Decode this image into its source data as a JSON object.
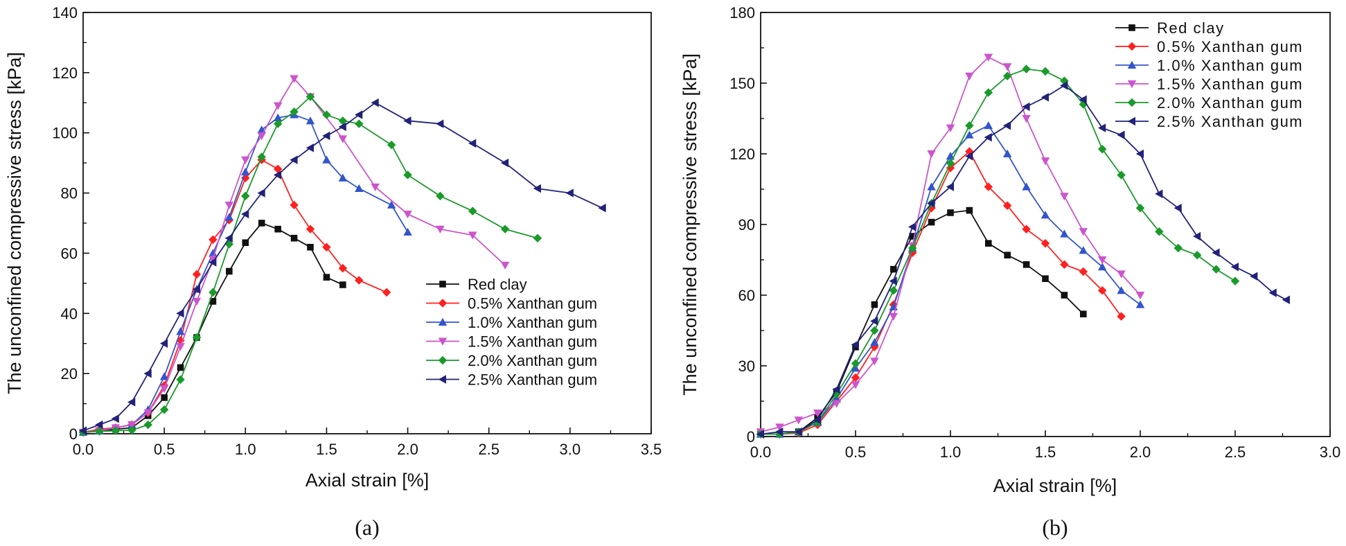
{
  "styles": {
    "series_colors": [
      "#111111",
      "#ff2020",
      "#3355cc",
      "#cc55cc",
      "#1a9a2a",
      "#22227a"
    ],
    "series_markers": [
      "square",
      "diamond",
      "triangle-up",
      "triangle-down",
      "diamond",
      "triangle-left"
    ]
  },
  "chart_data": [
    {
      "id": "a",
      "type": "line",
      "caption": "(a)",
      "xlabel": "Axial strain [%]",
      "ylabel": "The unconfined compressive stress [kPa]",
      "xlim": [
        0,
        3.5
      ],
      "ylim": [
        0,
        140
      ],
      "xticks": [
        "0.0",
        "0.5",
        "1.0",
        "1.5",
        "2.0",
        "2.5",
        "3.0",
        "3.5"
      ],
      "yticks": [
        "0",
        "20",
        "40",
        "60",
        "80",
        "100",
        "120",
        "140"
      ],
      "legend_position": "bottom-right",
      "series": [
        {
          "name": "Red clay",
          "x": [
            0,
            0.1,
            0.2,
            0.3,
            0.4,
            0.5,
            0.6,
            0.7,
            0.8,
            0.9,
            1.0,
            1.1,
            1.2,
            1.3,
            1.4,
            1.5,
            1.6
          ],
          "y": [
            0.5,
            1,
            1.5,
            2,
            6,
            12,
            22,
            32,
            44,
            54,
            63.5,
            70,
            68,
            65,
            62,
            52,
            49.5
          ]
        },
        {
          "name": "0.5% Xanthan gum",
          "x": [
            0,
            0.1,
            0.2,
            0.3,
            0.4,
            0.5,
            0.6,
            0.7,
            0.8,
            0.9,
            1.0,
            1.1,
            1.2,
            1.3,
            1.4,
            1.5,
            1.6,
            1.7,
            1.87
          ],
          "y": [
            0.5,
            1.5,
            2,
            3,
            7,
            16,
            31,
            53,
            64.5,
            71,
            85,
            91,
            88,
            76,
            68,
            62,
            55,
            51,
            47
          ]
        },
        {
          "name": "1.0% Xanthan gum",
          "x": [
            0,
            0.1,
            0.2,
            0.3,
            0.4,
            0.5,
            0.6,
            0.7,
            0.8,
            0.9,
            1.0,
            1.1,
            1.2,
            1.3,
            1.4,
            1.5,
            1.6,
            1.7,
            1.9,
            2.0
          ],
          "y": [
            0.5,
            1,
            2,
            3,
            8,
            19,
            34,
            48,
            60,
            72,
            87,
            101,
            105,
            106,
            104,
            91,
            85,
            81.5,
            76,
            67
          ]
        },
        {
          "name": "1.5% Xanthan gum",
          "x": [
            0,
            0.1,
            0.2,
            0.3,
            0.4,
            0.5,
            0.6,
            0.7,
            0.8,
            0.9,
            1.0,
            1.1,
            1.2,
            1.3,
            1.4,
            1.6,
            1.8,
            2.0,
            2.2,
            2.4,
            2.6
          ],
          "y": [
            0.5,
            1,
            2,
            3,
            7,
            15,
            29,
            44,
            58,
            76,
            91,
            99,
            109,
            118,
            112,
            98,
            82,
            73,
            68,
            66,
            56
          ]
        },
        {
          "name": "2.0% Xanthan gum",
          "x": [
            0,
            0.1,
            0.2,
            0.3,
            0.4,
            0.5,
            0.6,
            0.7,
            0.8,
            0.9,
            1.0,
            1.1,
            1.2,
            1.3,
            1.4,
            1.5,
            1.6,
            1.7,
            1.9,
            2.0,
            2.2,
            2.4,
            2.6,
            2.8
          ],
          "y": [
            0.5,
            0.8,
            1,
            1.2,
            3,
            8,
            18,
            32,
            47,
            63,
            79,
            92,
            103,
            107,
            112,
            106,
            104,
            103,
            96,
            86,
            79,
            74,
            68,
            65
          ]
        },
        {
          "name": "2.5% Xanthan gum",
          "x": [
            0,
            0.1,
            0.2,
            0.3,
            0.4,
            0.5,
            0.6,
            0.7,
            0.8,
            0.9,
            1.0,
            1.1,
            1.2,
            1.3,
            1.4,
            1.5,
            1.6,
            1.7,
            1.8,
            2.0,
            2.2,
            2.4,
            2.6,
            2.8,
            3.0,
            3.2
          ],
          "y": [
            1,
            3,
            5,
            10.5,
            20,
            30,
            40,
            48,
            57,
            65,
            73,
            80,
            86,
            91,
            95,
            99,
            102,
            106,
            110,
            104,
            103,
            96.5,
            90,
            81.5,
            80,
            75
          ]
        }
      ]
    },
    {
      "id": "b",
      "type": "line",
      "caption": "(b)",
      "xlabel": "Axial strain [%]",
      "ylabel": "The unconfined compressive stress [kPa]",
      "xlim": [
        0,
        3.0
      ],
      "ylim": [
        0,
        180
      ],
      "xticks": [
        "0.0",
        "0.5",
        "1.0",
        "1.5",
        "2.0",
        "2.5",
        "3.0"
      ],
      "yticks": [
        "0",
        "30",
        "60",
        "90",
        "120",
        "150",
        "180"
      ],
      "legend_position": "top-right",
      "series": [
        {
          "name": "Red clay",
          "x": [
            0,
            0.1,
            0.2,
            0.3,
            0.4,
            0.5,
            0.6,
            0.7,
            0.8,
            0.9,
            1.0,
            1.1,
            1.2,
            1.3,
            1.4,
            1.5,
            1.6,
            1.7
          ],
          "y": [
            1,
            1,
            2,
            8,
            19,
            38,
            56,
            71,
            85,
            91,
            95,
            96,
            82,
            77,
            73,
            67,
            60,
            52
          ]
        },
        {
          "name": "0.5% Xanthan gum",
          "x": [
            0,
            0.1,
            0.2,
            0.3,
            0.4,
            0.5,
            0.6,
            0.7,
            0.8,
            0.9,
            1.0,
            1.1,
            1.2,
            1.3,
            1.4,
            1.5,
            1.6,
            1.7,
            1.8,
            1.9
          ],
          "y": [
            1,
            1,
            1.5,
            5,
            15,
            25,
            38,
            56,
            78,
            97,
            114,
            121,
            106,
            98,
            88,
            82,
            73,
            70,
            62,
            51
          ]
        },
        {
          "name": "1.0% Xanthan gum",
          "x": [
            0,
            0.1,
            0.2,
            0.3,
            0.4,
            0.5,
            0.6,
            0.7,
            0.8,
            0.9,
            1.0,
            1.1,
            1.2,
            1.3,
            1.4,
            1.5,
            1.6,
            1.7,
            1.8,
            1.9,
            2.0
          ],
          "y": [
            1,
            1,
            2,
            6,
            16,
            29,
            40,
            55,
            80,
            106,
            119,
            128,
            132,
            120,
            106,
            94,
            86,
            79,
            72,
            62,
            56
          ]
        },
        {
          "name": "1.5% Xanthan gum",
          "x": [
            0,
            0.1,
            0.2,
            0.3,
            0.4,
            0.5,
            0.6,
            0.7,
            0.8,
            0.9,
            1.0,
            1.1,
            1.2,
            1.3,
            1.4,
            1.5,
            1.6,
            1.7,
            1.8,
            1.9,
            2.0
          ],
          "y": [
            2,
            4,
            7,
            10,
            14,
            22,
            32,
            51,
            81,
            120,
            131,
            153,
            161,
            157,
            135,
            117,
            102,
            87,
            75,
            69,
            60
          ]
        },
        {
          "name": "2.0% Xanthan gum",
          "x": [
            0,
            0.1,
            0.2,
            0.3,
            0.4,
            0.5,
            0.6,
            0.7,
            0.8,
            0.9,
            1.0,
            1.1,
            1.2,
            1.3,
            1.4,
            1.5,
            1.6,
            1.7,
            1.8,
            1.9,
            2.0,
            2.1,
            2.2,
            2.3,
            2.4,
            2.5
          ],
          "y": [
            1,
            1,
            2,
            6,
            18,
            31,
            45,
            62,
            80,
            99,
            116,
            132,
            146,
            153,
            156,
            155,
            151,
            141,
            122,
            111,
            97,
            87,
            80,
            77,
            71,
            66
          ]
        },
        {
          "name": "2.5% Xanthan gum",
          "x": [
            0,
            0.1,
            0.2,
            0.3,
            0.4,
            0.5,
            0.6,
            0.7,
            0.8,
            0.9,
            1.0,
            1.1,
            1.2,
            1.3,
            1.4,
            1.5,
            1.6,
            1.7,
            1.8,
            1.9,
            2.0,
            2.1,
            2.2,
            2.3,
            2.4,
            2.5,
            2.6,
            2.7,
            2.77
          ],
          "y": [
            1,
            2,
            2,
            7,
            20,
            39,
            49,
            66,
            89,
            99,
            106,
            119,
            127,
            132,
            140,
            144,
            149,
            143,
            131,
            128,
            120,
            103,
            97,
            85,
            78,
            72,
            68,
            61,
            58
          ]
        }
      ]
    }
  ]
}
